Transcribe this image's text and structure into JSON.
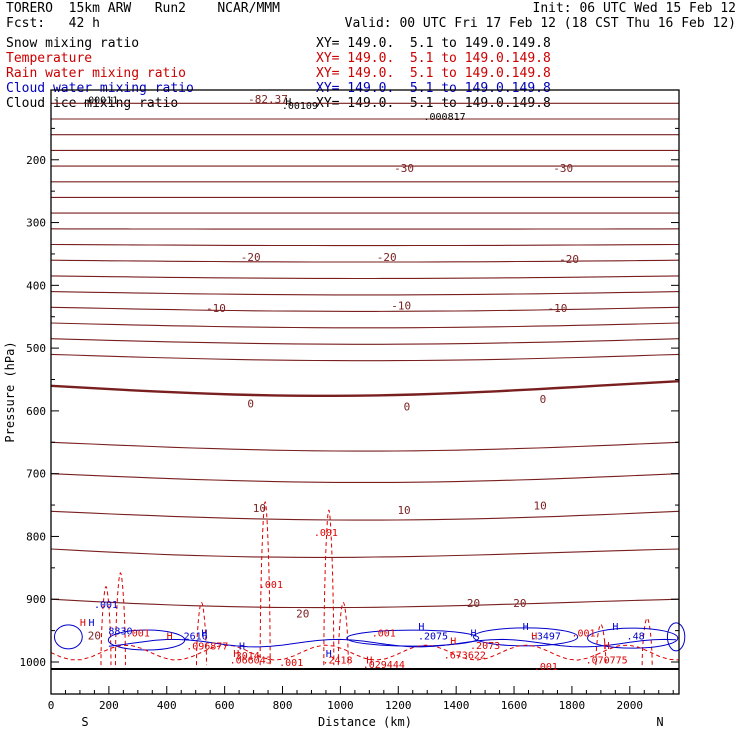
{
  "header": {
    "model": "TORERO  15km ARW   Run2    NCAR/MMM",
    "init": "Init: 06 UTC Wed 15 Feb 12",
    "fcst": "Fcst:   42 h",
    "valid": "Valid: 00 UTC Fri 17 Feb 12 (18 CST Thu 16 Feb 12)",
    "fields": [
      {
        "name": "Snow mixing ratio",
        "xy": "XY= 149.0.  5.1 to 149.0.149.8",
        "color": "#000000"
      },
      {
        "name": "Temperature",
        "xy": "XY= 149.0.  5.1 to 149.0.149.8",
        "color": "#cc0000"
      },
      {
        "name": "Rain water mixing ratio",
        "xy": "XY= 149.0.  5.1 to 149.0.149.8",
        "color": "#cc0000"
      },
      {
        "name": "Cloud water mixing ratio",
        "xy": "XY= 149.0.  5.1 to 149.0.149.8",
        "color": "#0000bb"
      },
      {
        "name": "Cloud ice mixing ratio",
        "xy": "XY= 149.0.  5.1 to 149.0.149.8",
        "color": "#000000"
      }
    ]
  },
  "chart_data": {
    "type": "line",
    "xlabel": "Distance (km)",
    "ylabel": "Pressure (hPa)",
    "xlim": [
      0,
      2170
    ],
    "ylim": [
      1010,
      100
    ],
    "x_ticks": [
      0,
      200,
      400,
      600,
      800,
      1000,
      1200,
      1400,
      1600,
      1800,
      2000
    ],
    "y_ticks": [
      200,
      300,
      400,
      500,
      600,
      700,
      800,
      900,
      1000
    ],
    "x_end_labels": {
      "left": "S",
      "right": "N"
    },
    "temperature_contour_labels": [
      {
        "x": 750,
        "p": 103,
        "text": "-82.37"
      },
      {
        "x": 1220,
        "p": 213,
        "text": "-30"
      },
      {
        "x": 1770,
        "p": 213,
        "text": "-30"
      },
      {
        "x": 690,
        "p": 355,
        "text": "-20"
      },
      {
        "x": 1160,
        "p": 355,
        "text": "-20"
      },
      {
        "x": 1790,
        "p": 358,
        "text": "-20"
      },
      {
        "x": 570,
        "p": 436,
        "text": "-10"
      },
      {
        "x": 1210,
        "p": 432,
        "text": "-10"
      },
      {
        "x": 1750,
        "p": 436,
        "text": "-10"
      },
      {
        "x": 690,
        "p": 588,
        "text": "0"
      },
      {
        "x": 1230,
        "p": 593,
        "text": "0"
      },
      {
        "x": 1700,
        "p": 581,
        "text": "0"
      },
      {
        "x": 720,
        "p": 755,
        "text": "10"
      },
      {
        "x": 1220,
        "p": 758,
        "text": "10"
      },
      {
        "x": 1690,
        "p": 751,
        "text": "10"
      },
      {
        "x": 870,
        "p": 923,
        "text": "20"
      },
      {
        "x": 1460,
        "p": 906,
        "text": "20"
      },
      {
        "x": 1620,
        "p": 906,
        "text": "20"
      },
      {
        "x": 150,
        "p": 958,
        "text": "20"
      }
    ],
    "mixing_ratio_labels": [
      {
        "x": 170,
        "p": 104,
        "text": ".00011"
      },
      {
        "x": 860,
        "p": 113,
        "text": ".00109"
      },
      {
        "x": 1360,
        "p": 130,
        "text": ".000817"
      },
      {
        "x": 950,
        "p": 793,
        "text": ".001"
      },
      {
        "x": 760,
        "p": 876,
        "text": ".001"
      },
      {
        "x": 190,
        "p": 908,
        "text": ".001"
      },
      {
        "x": 240,
        "p": 950,
        "text": "8830"
      },
      {
        "x": 300,
        "p": 953,
        "text": ".001"
      },
      {
        "x": 500,
        "p": 958,
        "text": "2616"
      },
      {
        "x": 540,
        "p": 974,
        "text": ".096877"
      },
      {
        "x": 680,
        "p": 989,
        "text": "3014"
      },
      {
        "x": 690,
        "p": 996,
        "text": ".066043"
      },
      {
        "x": 830,
        "p": 1000,
        "text": ".001"
      },
      {
        "x": 990,
        "p": 996,
        "text": ".2418"
      },
      {
        "x": 1150,
        "p": 1003,
        "text": ".029444"
      },
      {
        "x": 1150,
        "p": 953,
        "text": ".001"
      },
      {
        "x": 1320,
        "p": 958,
        "text": ".2075"
      },
      {
        "x": 1500,
        "p": 973,
        "text": ".2073"
      },
      {
        "x": 1430,
        "p": 988,
        "text": ".673622"
      },
      {
        "x": 1710,
        "p": 958,
        "text": ".3497"
      },
      {
        "x": 1840,
        "p": 953,
        "text": ".001"
      },
      {
        "x": 1920,
        "p": 996,
        "text": ".070775"
      },
      {
        "x": 2020,
        "p": 958,
        "text": ".48"
      },
      {
        "x": 1710,
        "p": 1006,
        "text": ".001"
      }
    ],
    "highs": [
      {
        "x": 820,
        "p": 106,
        "color": "black"
      },
      {
        "x": 530,
        "p": 953,
        "color": "blue"
      },
      {
        "x": 410,
        "p": 958,
        "color": "red"
      },
      {
        "x": 660,
        "p": 974,
        "color": "blue"
      },
      {
        "x": 640,
        "p": 986,
        "color": "red"
      },
      {
        "x": 960,
        "p": 986,
        "color": "blue"
      },
      {
        "x": 1100,
        "p": 996,
        "color": "red"
      },
      {
        "x": 1280,
        "p": 943,
        "color": "blue"
      },
      {
        "x": 1390,
        "p": 966,
        "color": "red"
      },
      {
        "x": 1460,
        "p": 953,
        "color": "blue"
      },
      {
        "x": 1640,
        "p": 943,
        "color": "blue"
      },
      {
        "x": 1670,
        "p": 958,
        "color": "red"
      },
      {
        "x": 1950,
        "p": 943,
        "color": "blue"
      },
      {
        "x": 1920,
        "p": 973,
        "color": "red"
      },
      {
        "x": 110,
        "p": 936,
        "color": "red"
      },
      {
        "x": 140,
        "p": 936,
        "color": "blue"
      }
    ],
    "grid": false
  }
}
